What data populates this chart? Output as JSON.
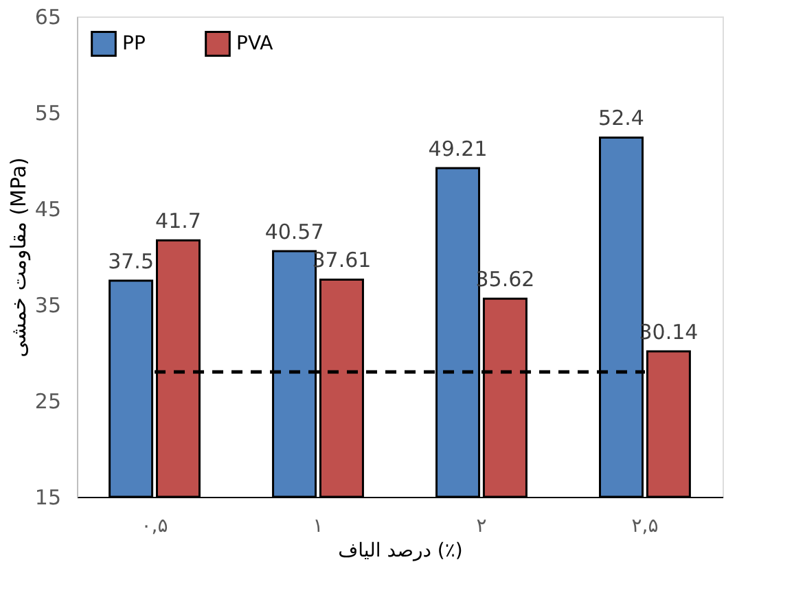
{
  "chart_data": {
    "type": "bar",
    "categories": [
      "۰,۵",
      "۱",
      "۲",
      "۲,۵"
    ],
    "series": [
      {
        "name": "PP",
        "color": "#4f81bd",
        "values": [
          37.5,
          40.57,
          49.21,
          52.4
        ],
        "value_labels": [
          "37.5",
          "40.57",
          "49.21",
          "52.4"
        ]
      },
      {
        "name": "PVA",
        "color": "#c0504d",
        "values": [
          41.7,
          37.61,
          35.62,
          30.14
        ],
        "value_labels": [
          "41.7",
          "37.61",
          "35.62",
          "30.14"
        ]
      },
      {
        "type": "line",
        "color": "#000000",
        "line_style": "dashed",
        "values": [
          28,
          28,
          28,
          28
        ]
      }
    ],
    "xlabel": "درصد الیاف (٪)",
    "ylabel": "مقاومت خمشی (MPa)",
    "ylim": [
      15,
      65
    ],
    "yticks": [
      15,
      25,
      35,
      45,
      55,
      65
    ],
    "grid": false,
    "legend": "top left"
  }
}
